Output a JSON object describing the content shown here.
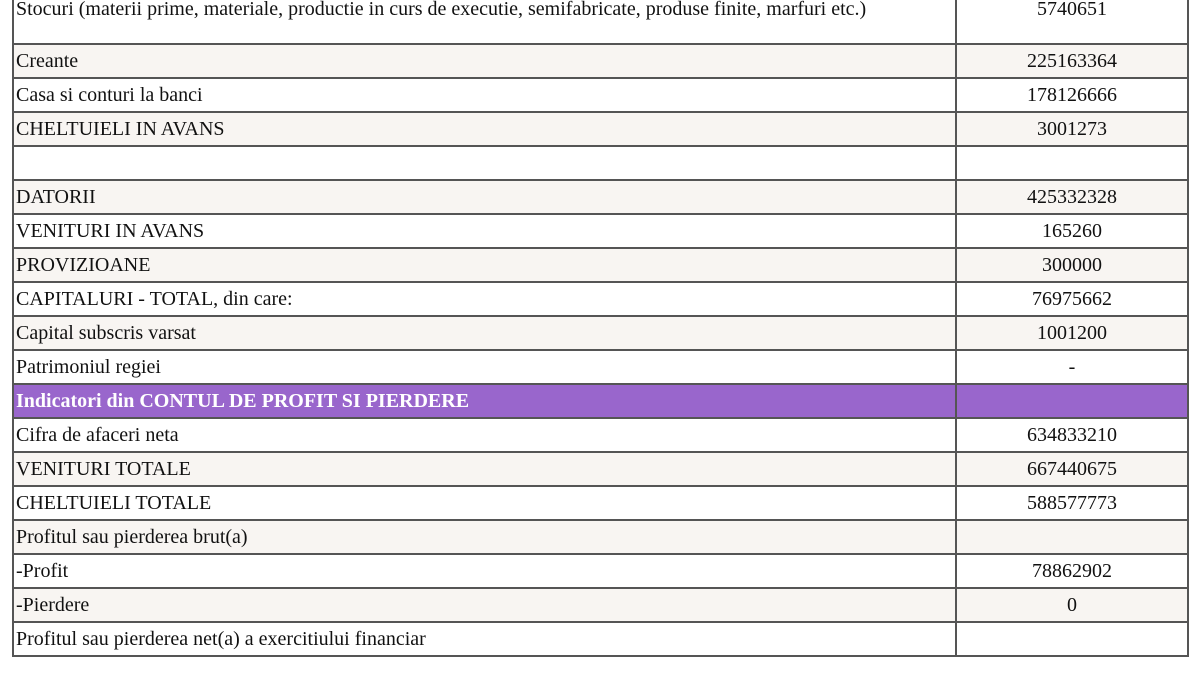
{
  "rows": [
    {
      "label": "Stocuri (materii prime, materiale, productie in curs de executie, semifabricate, produse finite, marfuri etc.)",
      "value": "5740651",
      "style": "w"
    },
    {
      "label": "Creante",
      "value": "225163364",
      "style": "b"
    },
    {
      "label": "Casa si conturi la banci",
      "value": "178126666",
      "style": "w"
    },
    {
      "label": "CHELTUIELI IN AVANS",
      "value": "3001273",
      "style": "b"
    },
    {
      "label": "",
      "value": "",
      "style": "w"
    },
    {
      "label": "DATORII",
      "value": "425332328",
      "style": "b"
    },
    {
      "label": "VENITURI IN AVANS",
      "value": "165260",
      "style": "w"
    },
    {
      "label": "PROVIZIOANE",
      "value": "300000",
      "style": "b"
    },
    {
      "label": "CAPITALURI - TOTAL, din care:",
      "value": "76975662",
      "style": "w"
    },
    {
      "label": "Capital subscris varsat",
      "value": "1001200",
      "style": "b"
    },
    {
      "label": "Patrimoniul regiei",
      "value": "-",
      "style": "w"
    },
    {
      "label": "Indicatori din CONTUL DE PROFIT SI PIERDERE",
      "value": "",
      "style": "head"
    },
    {
      "label": "Cifra de afaceri neta",
      "value": "634833210",
      "style": "w"
    },
    {
      "label": "VENITURI TOTALE",
      "value": "667440675",
      "style": "b"
    },
    {
      "label": "CHELTUIELI TOTALE",
      "value": "588577773",
      "style": "w"
    },
    {
      "label": "Profitul sau pierderea brut(a)",
      "value": "",
      "style": "b"
    },
    {
      "label": "-Profit",
      "value": "78862902",
      "style": "w"
    },
    {
      "label": "-Pierdere",
      "value": "0",
      "style": "b"
    },
    {
      "label": "Profitul sau pierderea net(a) a exercitiului financiar",
      "value": "",
      "style": "w"
    }
  ],
  "colors": {
    "section_header": "#9966cc",
    "row_alt": "#f8f5f2"
  }
}
